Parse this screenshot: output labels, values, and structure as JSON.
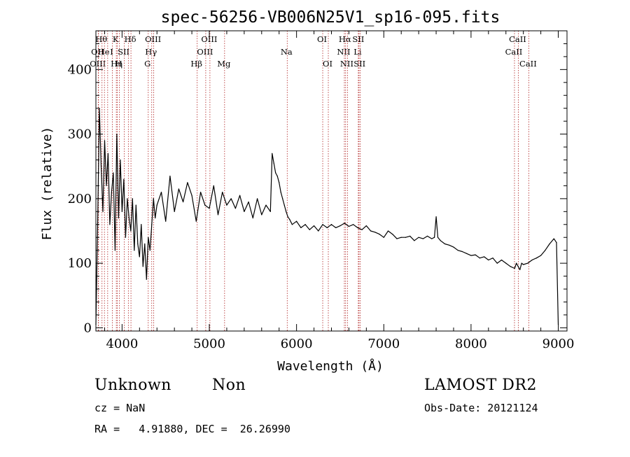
{
  "chart_data": {
    "type": "line",
    "title": "spec-56256-VB006N25V1_sp16-095.fits",
    "xlabel": "Wavelength (Å)",
    "ylabel": "Flux (relative)",
    "xlim": [
      3700,
      9100
    ],
    "ylim": [
      -5,
      460
    ],
    "x_ticks": [
      4000,
      5000,
      6000,
      7000,
      8000,
      9000
    ],
    "y_ticks": [
      0,
      100,
      200,
      300,
      400
    ],
    "grid": false,
    "series": [
      {
        "x": [
          3700,
          3720,
          3740,
          3760,
          3780,
          3800,
          3820,
          3840,
          3860,
          3880,
          3900,
          3920,
          3940,
          3960,
          3980,
          4000,
          4020,
          4040,
          4060,
          4080,
          4100,
          4120,
          4140,
          4160,
          4180,
          4200,
          4220,
          4240,
          4260,
          4280,
          4300,
          4320,
          4340,
          4360,
          4380,
          4400,
          4450,
          4500,
          4550,
          4600,
          4650,
          4700,
          4750,
          4800,
          4850,
          4900,
          4950,
          5000,
          5050,
          5100,
          5150,
          5200,
          5250,
          5300,
          5350,
          5400,
          5450,
          5500,
          5550,
          5600,
          5650,
          5700,
          5720,
          5740,
          5760,
          5780,
          5800,
          5820,
          5840,
          5860,
          5880,
          5900,
          5920,
          5950,
          6000,
          6050,
          6100,
          6150,
          6200,
          6250,
          6300,
          6350,
          6400,
          6450,
          6500,
          6550,
          6600,
          6650,
          6700,
          6750,
          6800,
          6850,
          6900,
          6950,
          7000,
          7050,
          7100,
          7150,
          7200,
          7250,
          7300,
          7350,
          7400,
          7450,
          7500,
          7550,
          7580,
          7600,
          7620,
          7650,
          7700,
          7750,
          7800,
          7850,
          7900,
          7950,
          8000,
          8050,
          8100,
          8150,
          8200,
          8250,
          8300,
          8350,
          8400,
          8450,
          8500,
          8520,
          8540,
          8560,
          8580,
          8600,
          8650,
          8700,
          8750,
          8800,
          8850,
          8900,
          8950,
          8980,
          9000
        ],
        "values": [
          5,
          160,
          340,
          250,
          180,
          290,
          220,
          270,
          160,
          210,
          240,
          120,
          300,
          170,
          260,
          180,
          230,
          140,
          200,
          170,
          150,
          200,
          120,
          190,
          130,
          110,
          160,
          95,
          130,
          75,
          140,
          120,
          160,
          200,
          170,
          190,
          210,
          165,
          235,
          180,
          215,
          195,
          225,
          205,
          165,
          210,
          190,
          185,
          220,
          175,
          210,
          190,
          200,
          185,
          205,
          180,
          195,
          170,
          200,
          175,
          190,
          180,
          270,
          255,
          240,
          235,
          225,
          210,
          200,
          190,
          180,
          172,
          168,
          160,
          165,
          155,
          160,
          152,
          158,
          150,
          160,
          155,
          160,
          155,
          158,
          162,
          157,
          160,
          155,
          152,
          158,
          150,
          148,
          145,
          140,
          150,
          145,
          138,
          140,
          140,
          142,
          135,
          140,
          138,
          142,
          138,
          140,
          172,
          140,
          135,
          130,
          128,
          125,
          120,
          118,
          115,
          112,
          113,
          108,
          110,
          105,
          108,
          100,
          105,
          100,
          95,
          92,
          100,
          95,
          90,
          100,
          98,
          100,
          105,
          108,
          112,
          120,
          130,
          138,
          132,
          5
        ]
      }
    ],
    "lines": [
      {
        "x": 3727,
        "row": 1,
        "label": "OII"
      },
      {
        "x": 3730,
        "row": 2,
        "label": "OIII"
      },
      {
        "x": 3770,
        "row": 0,
        "label": "Hθ"
      },
      {
        "x": 3798,
        "row": 1,
        "label": "He"
      },
      {
        "x": 3835,
        "row": 0,
        "label": ""
      },
      {
        "x": 3889,
        "row": 1,
        "label": "I"
      },
      {
        "x": 3934,
        "row": 0,
        "label": "K"
      },
      {
        "x": 3945,
        "row": 2,
        "label": "Hη"
      },
      {
        "x": 3969,
        "row": 2,
        "label": "H"
      },
      {
        "x": 4026,
        "row": 1,
        "label": "SII"
      },
      {
        "x": 4072,
        "row": 1,
        "label": ""
      },
      {
        "x": 4102,
        "row": 0,
        "label": "Hδ"
      },
      {
        "x": 4300,
        "row": 2,
        "label": "G"
      },
      {
        "x": 4340,
        "row": 1,
        "label": "Hγ"
      },
      {
        "x": 4363,
        "row": 0,
        "label": "OIII"
      },
      {
        "x": 4861,
        "row": 2,
        "label": "Hβ"
      },
      {
        "x": 4959,
        "row": 1,
        "label": "OIII"
      },
      {
        "x": 5007,
        "row": 0,
        "label": "OIII"
      },
      {
        "x": 5175,
        "row": 2,
        "label": "Mg"
      },
      {
        "x": 5893,
        "row": 1,
        "label": "Na"
      },
      {
        "x": 6300,
        "row": 0,
        "label": "OI"
      },
      {
        "x": 6364,
        "row": 2,
        "label": "OI"
      },
      {
        "x": 6548,
        "row": 1,
        "label": "NII"
      },
      {
        "x": 6563,
        "row": 0,
        "label": "Hα"
      },
      {
        "x": 6584,
        "row": 2,
        "label": "NII"
      },
      {
        "x": 6708,
        "row": 1,
        "label": "Li"
      },
      {
        "x": 6716,
        "row": 0,
        "label": "SII"
      },
      {
        "x": 6731,
        "row": 2,
        "label": "SII"
      },
      {
        "x": 8498,
        "row": 1,
        "label": "CaII"
      },
      {
        "x": 8542,
        "row": 0,
        "label": "CaII"
      },
      {
        "x": 8662,
        "row": 2,
        "label": "CaII"
      }
    ]
  },
  "info": {
    "object_class": "Unknown",
    "object_subclass": "Non",
    "survey": "LAMOST DR2",
    "cz": "cz = NaN",
    "obs_date": "Obs-Date: 20121124",
    "coords": "RA =   4.91880, DEC =  26.26990"
  }
}
